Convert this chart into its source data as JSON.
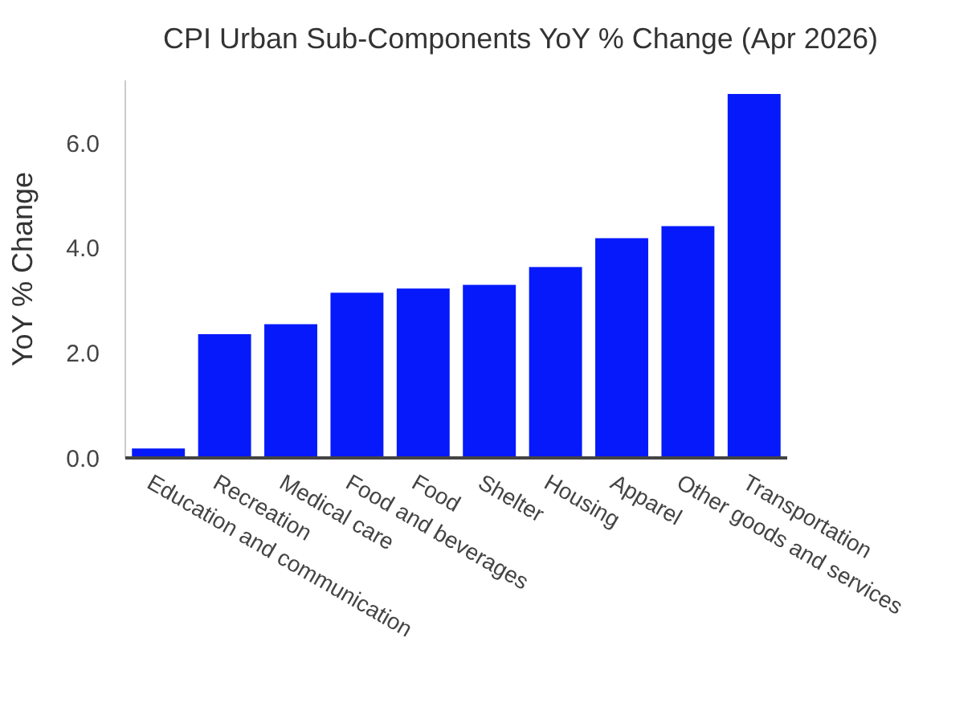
{
  "chart_data": {
    "type": "bar",
    "title": "CPI Urban Sub-Components YoY % Change (Apr 2026)",
    "ylabel": "YoY % Change",
    "categories": [
      "Education and communication",
      "Recreation",
      "Medical care",
      "Food and beverages",
      "Food",
      "Shelter",
      "Housing",
      "Apparel",
      "Other goods and services",
      "Transportation"
    ],
    "values": [
      0.18,
      2.36,
      2.55,
      3.15,
      3.23,
      3.3,
      3.64,
      4.19,
      4.42,
      6.94
    ],
    "color": "#0519fb",
    "ylim": [
      0,
      7.2
    ],
    "yticks": [
      {
        "value": 0,
        "label": "0.0"
      },
      {
        "value": 2,
        "label": "2.0"
      },
      {
        "value": 4,
        "label": "4.0"
      },
      {
        "value": 6,
        "label": "6.0"
      }
    ],
    "grid": false
  }
}
